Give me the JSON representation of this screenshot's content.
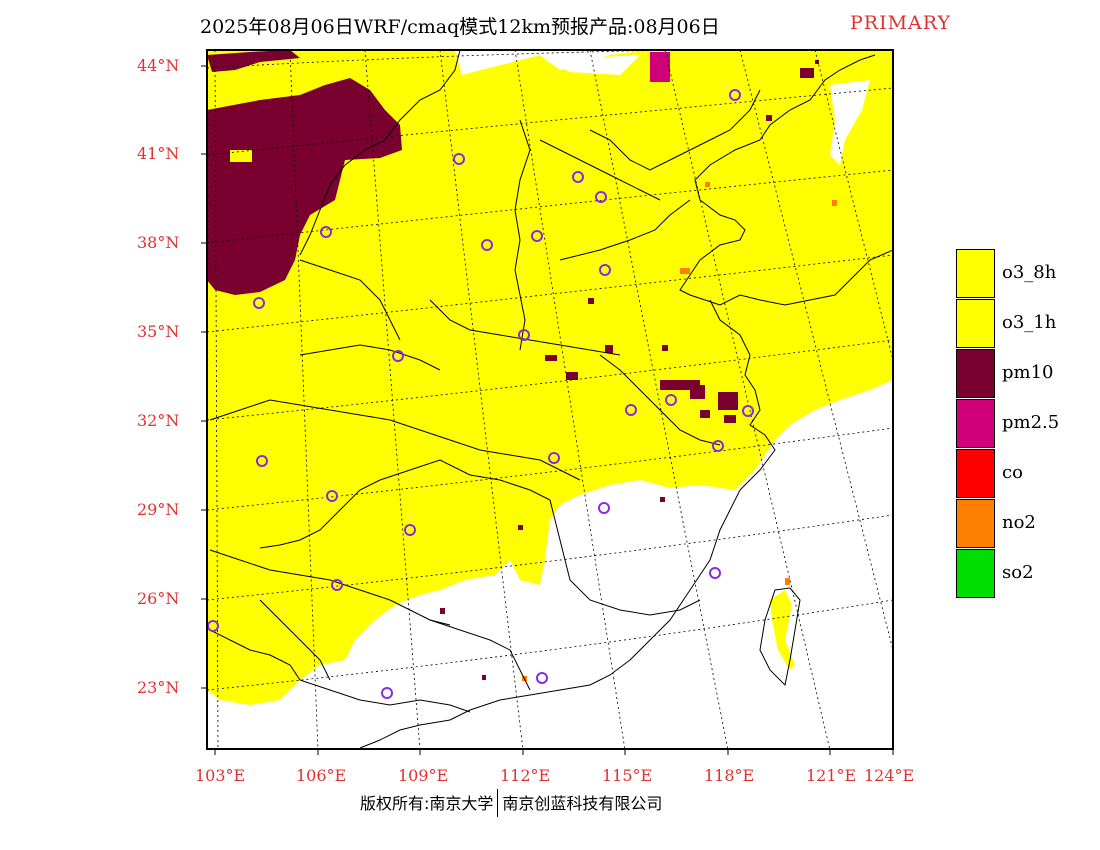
{
  "title": "2025年08月06日WRF/cmaq模式12km预报产品:08月06日",
  "title_tag": "PRIMARY",
  "title_tag_color": "#e03030",
  "axis_label_color": "#e03030",
  "lat_labels": [
    "44°N",
    "41°N",
    "38°N",
    "35°N",
    "32°N",
    "29°N",
    "26°N",
    "23°N"
  ],
  "lon_labels": [
    "103°E",
    "106°E",
    "109°E",
    "112°E",
    "115°E",
    "118°E",
    "121°E",
    "124°E"
  ],
  "legend": [
    {
      "label": "o3_8h",
      "color": "#ffff00"
    },
    {
      "label": "o3_1h",
      "color": "#ffff00"
    },
    {
      "label": "pm10",
      "color": "#7a0030"
    },
    {
      "label": "pm2.5",
      "color": "#d0007a"
    },
    {
      "label": "co",
      "color": "#ff0000"
    },
    {
      "label": "no2",
      "color": "#ff7f00"
    },
    {
      "label": "so2",
      "color": "#00dd00"
    }
  ],
  "footer": {
    "copyright": "版权所有:南京大学",
    "company": "南京创蓝科技有限公司"
  },
  "map_colors": {
    "yellow": "#ffff00",
    "dark": "#7a0030",
    "magenta": "#d0007a",
    "orange": "#ff7f00",
    "station": "#8a2be2"
  }
}
